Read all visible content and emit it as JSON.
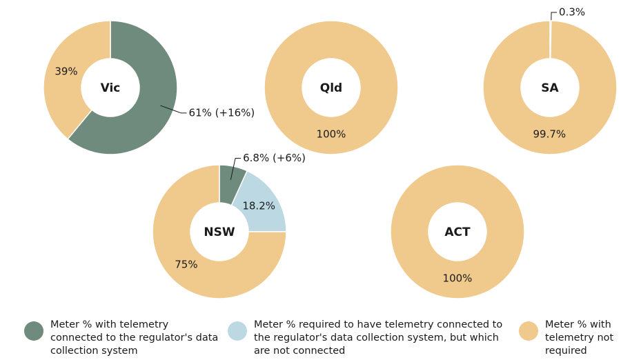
{
  "chart_data": [
    {
      "type": "pie",
      "title": "Vic",
      "values": [
        61,
        39
      ],
      "value_labels": [
        "61% (+16%)",
        "39%"
      ],
      "colors": [
        "#6e8b7d",
        "#f0c98c"
      ]
    },
    {
      "type": "pie",
      "title": "Qld",
      "values": [
        100
      ],
      "value_labels": [
        "100%"
      ],
      "colors": [
        "#f0c98c"
      ]
    },
    {
      "type": "pie",
      "title": "SA",
      "values": [
        0.3,
        99.7
      ],
      "value_labels": [
        "0.3%",
        "99.7%"
      ],
      "colors": [
        "#6e8b7d",
        "#f0c98c"
      ]
    },
    {
      "type": "pie",
      "title": "NSW",
      "values": [
        6.8,
        18.2,
        75
      ],
      "value_labels": [
        "6.8% (+6%)",
        "18.2%",
        "75%"
      ],
      "colors": [
        "#6e8b7d",
        "#bcd9e3",
        "#f0c98c"
      ]
    },
    {
      "type": "pie",
      "title": "ACT",
      "values": [
        100
      ],
      "value_labels": [
        "100%"
      ],
      "colors": [
        "#f0c98c"
      ]
    }
  ],
  "legend": {
    "items": [
      {
        "label": "Meter % with telemetry connected to the regulator's data collection system",
        "color": "#6e8b7d"
      },
      {
        "label": "Meter % required to have telemetry connected to the regulator's data collection system, but which are not connected",
        "color": "#bcd9e3"
      },
      {
        "label": "Meter % with telemetry not required",
        "color": "#f0c98c"
      }
    ]
  }
}
